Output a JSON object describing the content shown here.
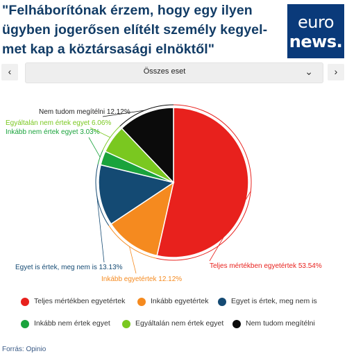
{
  "header": {
    "title": "\"Felháborítónak érzem, hogy egy ilyen ügyben jogerősen elítélt személy kegyel-met kap a köztársasági elnöktől\"",
    "logo_line1": "euro",
    "logo_line2": "news.",
    "logo_color": "#0a3a7a"
  },
  "nav": {
    "prev_icon": "‹",
    "next_icon": "›",
    "select_value": "Összes eset",
    "select_icon": "⌄"
  },
  "chart_data": {
    "type": "pie",
    "slices": [
      {
        "label": "Teljes mértékben egyetértek",
        "value": 53.54,
        "color": "#e8211d",
        "data_label": "Teljes mértékben egyetértek 53.54%"
      },
      {
        "label": "Inkább egyetértek",
        "value": 12.12,
        "color": "#f58a1f",
        "data_label": "Inkább egyetértek 12.12%"
      },
      {
        "label": "Egyet is értek, meg nem is",
        "value": 13.13,
        "color": "#144a73",
        "data_label": "Egyet is értek, meg nem is 13.13%"
      },
      {
        "label": "Inkább nem értek egyet",
        "value": 3.03,
        "color": "#1aa33c",
        "data_label": "Inkább nem értek egyet 3.03%"
      },
      {
        "label": "Egyáltalán nem értek egyet",
        "value": 6.06,
        "color": "#7ac820",
        "data_label": "Egyáltalán nem értek egyet 6.06%"
      },
      {
        "label": "Nem tudom megítélni",
        "value": 12.12,
        "color": "#0b0b0b",
        "data_label": "Nem tudom megítélni 12.12%"
      }
    ],
    "legend_position": "bottom"
  },
  "source": "Forrás: Opinio"
}
